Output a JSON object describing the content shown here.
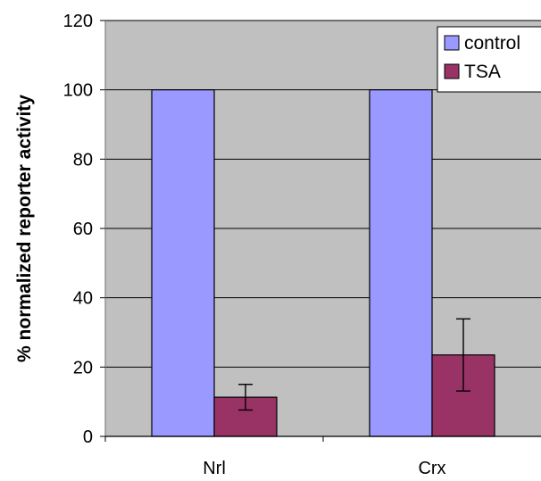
{
  "chart_data": {
    "type": "bar",
    "categories": [
      "Nrl",
      "Crx"
    ],
    "series": [
      {
        "name": "control",
        "values": [
          100,
          100
        ],
        "color": "#9999FF"
      },
      {
        "name": "TSA",
        "values": [
          11.3,
          23.5
        ],
        "error": [
          3.7,
          10.4
        ],
        "color": "#993366"
      }
    ],
    "xlabel": "",
    "ylabel": "% normalized reporter activity",
    "ylim": [
      0,
      120
    ],
    "yticks": [
      0,
      20,
      40,
      60,
      80,
      100,
      120
    ],
    "plot_background": "#C0C0C0",
    "grid": true,
    "legend": "top-right"
  }
}
